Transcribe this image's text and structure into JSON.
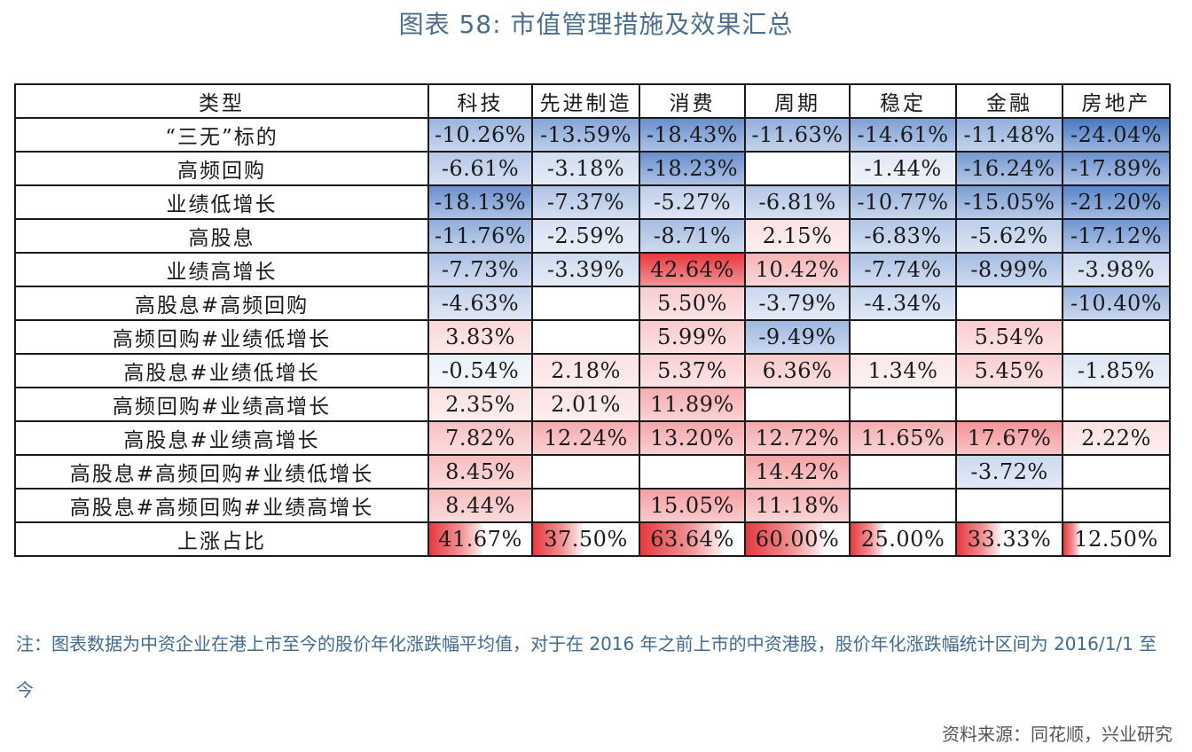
{
  "title": "图表 58: 市值管理措施及效果汇总",
  "table": {
    "headers": [
      "类型",
      "科技",
      "先进制造",
      "消费",
      "周期",
      "稳定",
      "金融",
      "房地产"
    ],
    "rows": [
      {
        "label": "“三无”标的",
        "cells": [
          "-10.26%",
          "-13.59%",
          "-18.43%",
          "-11.63%",
          "-14.61%",
          "-11.48%",
          "-24.04%"
        ]
      },
      {
        "label": "高频回购",
        "cells": [
          "-6.61%",
          "-3.18%",
          "-18.23%",
          "",
          "-1.44%",
          "-16.24%",
          "-17.89%"
        ]
      },
      {
        "label": "业绩低增长",
        "cells": [
          "-18.13%",
          "-7.37%",
          "-5.27%",
          "-6.81%",
          "-10.77%",
          "-15.05%",
          "-21.20%"
        ]
      },
      {
        "label": "高股息",
        "cells": [
          "-11.76%",
          "-2.59%",
          "-8.71%",
          "2.15%",
          "-6.83%",
          "-5.62%",
          "-17.12%"
        ]
      },
      {
        "label": "业绩高增长",
        "cells": [
          "-7.73%",
          "-3.39%",
          "42.64%",
          "10.42%",
          "-7.74%",
          "-8.99%",
          "-3.98%"
        ]
      },
      {
        "label": "高股息#高频回购",
        "cells": [
          "-4.63%",
          "",
          "5.50%",
          "-3.79%",
          "-4.34%",
          "",
          "-10.40%"
        ]
      },
      {
        "label": "高频回购#业绩低增长",
        "cells": [
          "3.83%",
          "",
          "5.99%",
          "-9.49%",
          "",
          "5.54%",
          ""
        ]
      },
      {
        "label": "高股息#业绩低增长",
        "cells": [
          "-0.54%",
          "2.18%",
          "5.37%",
          "6.36%",
          "1.34%",
          "5.45%",
          "-1.85%"
        ]
      },
      {
        "label": "高频回购#业绩高增长",
        "cells": [
          "2.35%",
          "2.01%",
          "11.89%",
          "",
          "",
          "",
          ""
        ]
      },
      {
        "label": "高股息#业绩高增长",
        "cells": [
          "7.82%",
          "12.24%",
          "13.20%",
          "12.72%",
          "11.65%",
          "17.67%",
          "2.22%"
        ]
      },
      {
        "label": "高股息#高频回购#业绩低增长",
        "cells": [
          "8.45%",
          "",
          "",
          "14.42%",
          "",
          "-3.72%",
          ""
        ]
      },
      {
        "label": "高股息#高频回购#业绩高增长",
        "cells": [
          "8.44%",
          "",
          "15.05%",
          "11.18%",
          "",
          "",
          ""
        ]
      }
    ],
    "summary": {
      "label": "上涨占比",
      "cells": [
        "41.67%",
        "37.50%",
        "63.64%",
        "60.00%",
        "25.00%",
        "33.33%",
        "12.50%"
      ]
    }
  },
  "colors": {
    "positive": "#e8393f",
    "negative": "#4a78c4",
    "summary_bar": "#e53a3f",
    "title": "#4a6e8f",
    "note": "#3f6b93"
  },
  "note": "注：图表数据为中资企业在港上市至今的股价年化涨跌幅平均值，对于在 2016 年之前上市的中资港股，股价年化涨跌幅统计区间为 2016/1/1 至今",
  "source": "资料来源：同花顺，兴业研究"
}
